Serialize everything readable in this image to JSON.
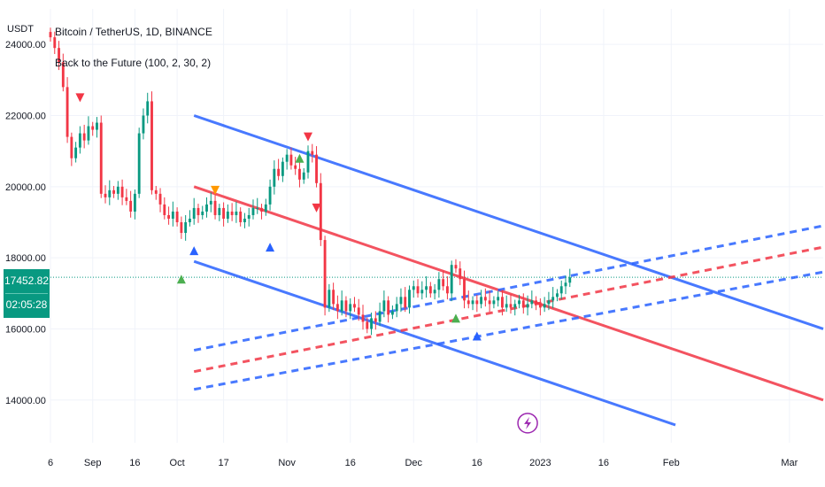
{
  "chart_data": {
    "type": "candlestick",
    "symbol": "Bitcoin / TetherUS, 1D, BINANCE",
    "indicator": "Back to the Future (100, 2, 30, 2)",
    "unit": "USDT",
    "y_ticks": [
      "24000.00",
      "22000.00",
      "20000.00",
      "18000.00",
      "16000.00",
      "14000.00"
    ],
    "y_tick_values": [
      24000,
      22000,
      20000,
      18000,
      16000,
      14000
    ],
    "ylim": [
      12800,
      25000
    ],
    "x_range_days": [
      0,
      183
    ],
    "x_ticks": [
      {
        "day": 0,
        "label": "6"
      },
      {
        "day": 10,
        "label": "Sep"
      },
      {
        "day": 20,
        "label": "16"
      },
      {
        "day": 30,
        "label": "Oct"
      },
      {
        "day": 41,
        "label": "17"
      },
      {
        "day": 56,
        "label": "Nov"
      },
      {
        "day": 71,
        "label": "16"
      },
      {
        "day": 86,
        "label": "Dec"
      },
      {
        "day": 101,
        "label": "16"
      },
      {
        "day": 116,
        "label": "2023"
      },
      {
        "day": 131,
        "label": "16"
      },
      {
        "day": 147,
        "label": "Feb"
      },
      {
        "day": 175,
        "label": "Mar"
      }
    ],
    "current_price": "17452.82",
    "current_price_value": 17452.82,
    "countdown": "02:05:28",
    "close_path": [
      [
        0,
        24200
      ],
      [
        1,
        23900
      ],
      [
        2,
        23500
      ],
      [
        3,
        22800
      ],
      [
        4,
        21400
      ],
      [
        5,
        20800
      ],
      [
        6,
        21100
      ],
      [
        7,
        21500
      ],
      [
        8,
        21300
      ],
      [
        9,
        21700
      ],
      [
        10,
        21600
      ],
      [
        11,
        21800
      ],
      [
        12,
        19800
      ],
      [
        13,
        19700
      ],
      [
        14,
        19900
      ],
      [
        15,
        19800
      ],
      [
        16,
        20000
      ],
      [
        17,
        19700
      ],
      [
        18,
        19600
      ],
      [
        19,
        19300
      ],
      [
        20,
        19800
      ],
      [
        21,
        21500
      ],
      [
        22,
        22000
      ],
      [
        23,
        22400
      ],
      [
        24,
        19900
      ],
      [
        25,
        19800
      ],
      [
        26,
        19500
      ],
      [
        27,
        19200
      ],
      [
        28,
        19100
      ],
      [
        29,
        19300
      ],
      [
        30,
        19000
      ],
      [
        31,
        18700
      ],
      [
        32,
        19000
      ],
      [
        33,
        19100
      ],
      [
        34,
        19400
      ],
      [
        35,
        19200
      ],
      [
        36,
        19300
      ],
      [
        37,
        19500
      ],
      [
        38,
        19600
      ],
      [
        39,
        19200
      ],
      [
        40,
        19400
      ],
      [
        41,
        19100
      ],
      [
        42,
        19300
      ],
      [
        43,
        19200
      ],
      [
        44,
        19300
      ],
      [
        45,
        19000
      ],
      [
        46,
        19100
      ],
      [
        47,
        19200
      ],
      [
        48,
        19400
      ],
      [
        49,
        19400
      ],
      [
        50,
        19300
      ],
      [
        51,
        19500
      ],
      [
        52,
        20000
      ],
      [
        53,
        20500
      ],
      [
        54,
        20300
      ],
      [
        55,
        20700
      ],
      [
        56,
        20900
      ],
      [
        57,
        20600
      ],
      [
        58,
        20500
      ],
      [
        59,
        20200
      ],
      [
        60,
        20400
      ],
      [
        61,
        21000
      ],
      [
        62,
        20900
      ],
      [
        63,
        20100
      ],
      [
        64,
        18500
      ],
      [
        65,
        16600
      ],
      [
        66,
        17100
      ],
      [
        67,
        16700
      ],
      [
        68,
        16500
      ],
      [
        69,
        16800
      ],
      [
        70,
        16500
      ],
      [
        71,
        16700
      ],
      [
        72,
        16600
      ],
      [
        73,
        16400
      ],
      [
        74,
        16200
      ],
      [
        75,
        16000
      ],
      [
        76,
        16300
      ],
      [
        77,
        16200
      ],
      [
        78,
        16500
      ],
      [
        79,
        16800
      ],
      [
        80,
        16400
      ],
      [
        81,
        16500
      ],
      [
        82,
        16700
      ],
      [
        83,
        16900
      ],
      [
        84,
        16600
      ],
      [
        85,
        17100
      ],
      [
        86,
        17200
      ],
      [
        87,
        17000
      ],
      [
        88,
        17100
      ],
      [
        89,
        17200
      ],
      [
        90,
        17000
      ],
      [
        91,
        17100
      ],
      [
        92,
        17400
      ],
      [
        93,
        17200
      ],
      [
        94,
        17000
      ],
      [
        95,
        17800
      ],
      [
        96,
        17700
      ],
      [
        97,
        17400
      ],
      [
        98,
        16800
      ],
      [
        99,
        16700
      ],
      [
        100,
        16800
      ],
      [
        101,
        16700
      ],
      [
        102,
        16900
      ],
      [
        103,
        16800
      ],
      [
        104,
        16700
      ],
      [
        105,
        16800
      ],
      [
        106,
        16900
      ],
      [
        107,
        16600
      ],
      [
        108,
        16700
      ],
      [
        109,
        16600
      ],
      [
        110,
        16700
      ],
      [
        111,
        16800
      ],
      [
        112,
        16600
      ],
      [
        113,
        16700
      ],
      [
        114,
        16800
      ],
      [
        115,
        16700
      ],
      [
        116,
        16600
      ],
      [
        117,
        16700
      ],
      [
        118,
        16800
      ],
      [
        119,
        16900
      ],
      [
        120,
        17000
      ],
      [
        121,
        17200
      ],
      [
        122,
        17300
      ],
      [
        123,
        17450
      ]
    ],
    "regression": {
      "solid_mid": {
        "color": "#f23645",
        "from": [
          34,
          20000
        ],
        "to": [
          183,
          14000
        ]
      },
      "solid_upper": {
        "color": "#2962ff",
        "from": [
          34,
          22000
        ],
        "to": [
          183,
          16000
        ]
      },
      "solid_lower": {
        "color": "#2962ff",
        "from": [
          34,
          17900
        ],
        "to": [
          148,
          13300
        ]
      },
      "dashed_mid": {
        "color": "#f23645",
        "from": [
          34,
          14800
        ],
        "to": [
          183,
          18300
        ]
      },
      "dashed_upper": {
        "color": "#2962ff",
        "from": [
          34,
          15400
        ],
        "to": [
          183,
          18900
        ]
      },
      "dashed_lower": {
        "color": "#2962ff",
        "from": [
          34,
          14300
        ],
        "to": [
          183,
          17600
        ]
      }
    },
    "markers": [
      {
        "day": 7,
        "price": 22500,
        "type": "down",
        "color": "#f23645"
      },
      {
        "day": 31,
        "price": 17400,
        "type": "up",
        "color": "#4caf50"
      },
      {
        "day": 34,
        "price": 18200,
        "type": "up",
        "color": "#2962ff"
      },
      {
        "day": 39,
        "price": 19900,
        "type": "down",
        "color": "#ff9800"
      },
      {
        "day": 52,
        "price": 18300,
        "type": "up",
        "color": "#2962ff"
      },
      {
        "day": 59,
        "price": 20800,
        "type": "up",
        "color": "#4caf50"
      },
      {
        "day": 61,
        "price": 21400,
        "type": "down",
        "color": "#f23645"
      },
      {
        "day": 63,
        "price": 19400,
        "type": "down",
        "color": "#f23645"
      },
      {
        "day": 96,
        "price": 16300,
        "type": "up",
        "color": "#4caf50"
      },
      {
        "day": 101,
        "price": 15800,
        "type": "up",
        "color": "#2962ff"
      }
    ],
    "lightning_day": 113,
    "lightning_price": 13900,
    "grid": true,
    "legend_position": "top-left"
  },
  "colors": {
    "up": "#089981",
    "down": "#f23645",
    "grid": "#f0f3fa",
    "price_line": "#089981"
  },
  "icons": [
    "lightning-icon"
  ]
}
